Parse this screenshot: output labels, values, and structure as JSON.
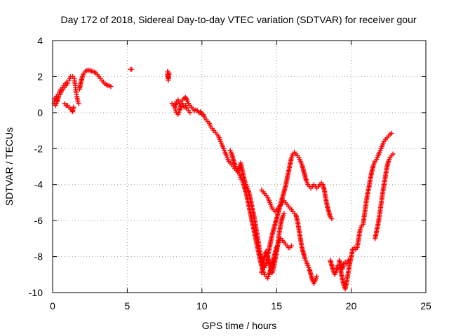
{
  "chart_data": {
    "type": "scatter",
    "title": "Day 172 of 2018, Sidereal Day-to-day VTEC variation (SDTVAR) for receiver gour",
    "xlabel": "GPS time / hours",
    "ylabel": "SDTVAR / TECUs",
    "xlim": [
      0,
      25
    ],
    "ylim": [
      -10,
      4
    ],
    "xticks": [
      0,
      5,
      10,
      15,
      20,
      25
    ],
    "yticks": [
      -10,
      -8,
      -6,
      -4,
      -2,
      0,
      2,
      4
    ],
    "grid": true,
    "marker": "+",
    "color": "#ff0000",
    "segments": [
      [
        [
          0.1,
          0.5
        ],
        [
          0.15,
          0.8
        ],
        [
          0.25,
          0.9
        ],
        [
          0.35,
          1.0
        ],
        [
          0.45,
          1.1
        ],
        [
          0.55,
          1.3
        ],
        [
          0.65,
          1.4
        ],
        [
          0.75,
          1.5
        ],
        [
          0.85,
          1.6
        ],
        [
          0.95,
          1.7
        ],
        [
          1.0,
          1.6
        ]
      ],
      [
        [
          0.2,
          0.4
        ],
        [
          0.3,
          0.6
        ],
        [
          0.4,
          0.9
        ],
        [
          0.5,
          1.0
        ],
        [
          0.6,
          1.2
        ],
        [
          0.7,
          1.3
        ],
        [
          0.8,
          1.4
        ],
        [
          0.9,
          1.5
        ]
      ],
      [
        [
          0.8,
          0.5
        ],
        [
          0.9,
          0.4
        ],
        [
          1.0,
          0.4
        ],
        [
          1.1,
          0.3
        ],
        [
          1.2,
          0.2
        ],
        [
          1.3,
          0.1
        ],
        [
          1.35,
          0.05
        ],
        [
          1.4,
          0.3
        ]
      ],
      [
        [
          1.1,
          1.8
        ],
        [
          1.2,
          2.0
        ],
        [
          1.35,
          2.0
        ],
        [
          1.45,
          1.9
        ],
        [
          1.5,
          1.6
        ],
        [
          1.55,
          1.3
        ],
        [
          1.6,
          1.0
        ],
        [
          1.65,
          0.8
        ],
        [
          1.7,
          0.6
        ],
        [
          1.75,
          0.5
        ]
      ],
      [
        [
          1.8,
          1.3
        ],
        [
          1.9,
          1.7
        ],
        [
          2.0,
          2.0
        ],
        [
          2.1,
          2.2
        ],
        [
          2.2,
          2.3
        ],
        [
          2.3,
          2.35
        ],
        [
          2.4,
          2.35
        ],
        [
          2.5,
          2.35
        ],
        [
          2.6,
          2.3
        ],
        [
          2.7,
          2.3
        ],
        [
          2.8,
          2.25
        ],
        [
          2.9,
          2.2
        ],
        [
          3.0,
          2.1
        ],
        [
          3.1,
          2.0
        ],
        [
          3.2,
          1.9
        ],
        [
          3.3,
          1.8
        ],
        [
          3.4,
          1.7
        ],
        [
          3.5,
          1.6
        ],
        [
          3.6,
          1.55
        ],
        [
          3.7,
          1.5
        ],
        [
          3.8,
          1.5
        ],
        [
          3.9,
          1.45
        ]
      ],
      [
        [
          5.2,
          2.4
        ],
        [
          5.3,
          2.4
        ]
      ],
      [
        [
          7.7,
          2.3
        ],
        [
          7.7,
          2.0
        ],
        [
          7.75,
          1.8
        ],
        [
          7.8,
          2.2
        ]
      ],
      [
        [
          8.0,
          0.5
        ],
        [
          8.1,
          0.4
        ],
        [
          8.2,
          0.3
        ],
        [
          8.3,
          0.6
        ],
        [
          8.4,
          0.7
        ],
        [
          8.5,
          0.5
        ],
        [
          8.6,
          0.6
        ],
        [
          8.7,
          0.7
        ],
        [
          8.8,
          0.8
        ],
        [
          8.9,
          0.85
        ],
        [
          9.0,
          0.7
        ],
        [
          9.1,
          0.5
        ],
        [
          9.2,
          0.4
        ],
        [
          9.3,
          0.3
        ],
        [
          9.4,
          0.2
        ],
        [
          9.5,
          0.1
        ],
        [
          9.6,
          0.15
        ],
        [
          9.7,
          0.1
        ],
        [
          9.8,
          0.0
        ],
        [
          9.9,
          0.05
        ],
        [
          10.0,
          -0.1
        ],
        [
          10.1,
          -0.1
        ],
        [
          10.2,
          -0.3
        ],
        [
          10.3,
          -0.4
        ],
        [
          10.4,
          -0.5
        ],
        [
          10.5,
          -0.6
        ],
        [
          10.6,
          -0.8
        ],
        [
          10.7,
          -0.9
        ],
        [
          10.8,
          -1.0
        ],
        [
          10.9,
          -1.1
        ],
        [
          11.0,
          -1.2
        ],
        [
          11.1,
          -1.3
        ],
        [
          11.2,
          -1.5
        ],
        [
          11.3,
          -1.7
        ],
        [
          11.4,
          -1.9
        ],
        [
          11.5,
          -2.1
        ],
        [
          11.6,
          -2.3
        ],
        [
          11.7,
          -2.5
        ],
        [
          11.8,
          -2.7
        ],
        [
          11.9,
          -2.8
        ],
        [
          12.0,
          -2.9
        ],
        [
          12.1,
          -3.0
        ],
        [
          12.2,
          -3.1
        ],
        [
          12.3,
          -3.2
        ],
        [
          12.4,
          -3.3
        ],
        [
          12.5,
          -3.4
        ],
        [
          12.6,
          -3.6
        ],
        [
          12.7,
          -3.8
        ],
        [
          12.8,
          -4.0
        ],
        [
          12.9,
          -4.3
        ],
        [
          13.0,
          -4.6
        ],
        [
          13.1,
          -5.0
        ],
        [
          13.2,
          -5.4
        ],
        [
          13.3,
          -5.8
        ],
        [
          13.4,
          -6.2
        ],
        [
          13.5,
          -6.6
        ],
        [
          13.6,
          -7.0
        ],
        [
          13.7,
          -7.4
        ],
        [
          13.8,
          -7.8
        ],
        [
          13.9,
          -8.2
        ],
        [
          14.0,
          -8.5
        ],
        [
          14.1,
          -8.8
        ],
        [
          14.2,
          -9.0
        ],
        [
          14.3,
          -9.1
        ],
        [
          14.4,
          -9.2
        ],
        [
          14.5,
          -9.0
        ],
        [
          14.6,
          -8.7
        ],
        [
          14.7,
          -8.4
        ],
        [
          14.8,
          -8.1
        ],
        [
          14.9,
          -7.8
        ],
        [
          15.0,
          -7.5
        ],
        [
          15.1,
          -7.3
        ],
        [
          15.2,
          -7.1
        ],
        [
          15.3,
          -7.0
        ],
        [
          15.4,
          -7.1
        ],
        [
          15.5,
          -7.2
        ],
        [
          15.6,
          -7.3
        ],
        [
          15.7,
          -7.4
        ],
        [
          15.8,
          -7.5
        ],
        [
          15.9,
          -7.5
        ],
        [
          16.0,
          -7.4
        ]
      ],
      [
        [
          8.2,
          0.2
        ],
        [
          8.3,
          0.0
        ],
        [
          8.4,
          -0.1
        ],
        [
          8.5,
          0.1
        ],
        [
          8.6,
          0.4
        ],
        [
          8.7,
          0.5
        ],
        [
          8.8,
          0.3
        ],
        [
          8.9,
          0.4
        ],
        [
          9.0,
          0.2
        ],
        [
          9.1,
          0.1
        ],
        [
          9.2,
          0.0
        ]
      ],
      [
        [
          11.9,
          -2.1
        ],
        [
          12.0,
          -2.3
        ],
        [
          12.1,
          -2.6
        ],
        [
          12.2,
          -2.9
        ],
        [
          12.3,
          -3.1
        ],
        [
          12.4,
          -3.3
        ],
        [
          12.5,
          -3.0
        ],
        [
          12.6,
          -2.8
        ],
        [
          12.7,
          -3.2
        ],
        [
          12.8,
          -3.6
        ],
        [
          12.9,
          -3.9
        ],
        [
          13.0,
          -4.1
        ],
        [
          13.1,
          -4.3
        ],
        [
          13.2,
          -4.6
        ],
        [
          13.3,
          -5.0
        ],
        [
          13.4,
          -5.4
        ],
        [
          13.5,
          -5.8
        ],
        [
          13.6,
          -6.3
        ],
        [
          13.7,
          -6.8
        ],
        [
          13.8,
          -7.3
        ],
        [
          13.9,
          -7.8
        ],
        [
          14.0,
          -8.2
        ],
        [
          14.1,
          -8.5
        ],
        [
          14.2,
          -8.6
        ],
        [
          14.3,
          -8.4
        ],
        [
          14.4,
          -8.0
        ],
        [
          14.5,
          -7.6
        ],
        [
          14.6,
          -7.2
        ],
        [
          14.7,
          -6.8
        ],
        [
          14.8,
          -6.5
        ],
        [
          14.9,
          -6.2
        ],
        [
          15.0,
          -5.9
        ],
        [
          15.1,
          -5.6
        ],
        [
          15.2,
          -5.3
        ],
        [
          15.3,
          -5.0
        ],
        [
          15.4,
          -4.7
        ],
        [
          15.5,
          -4.4
        ],
        [
          15.6,
          -4.1
        ],
        [
          15.7,
          -3.7
        ],
        [
          15.8,
          -3.3
        ],
        [
          15.9,
          -2.9
        ],
        [
          16.0,
          -2.5
        ],
        [
          16.1,
          -2.3
        ],
        [
          16.2,
          -2.2
        ],
        [
          16.3,
          -2.3
        ],
        [
          16.4,
          -2.4
        ],
        [
          16.5,
          -2.5
        ],
        [
          16.6,
          -2.7
        ],
        [
          16.7,
          -2.9
        ],
        [
          16.8,
          -3.2
        ],
        [
          16.9,
          -3.5
        ],
        [
          17.0,
          -3.8
        ],
        [
          17.1,
          -4.0
        ],
        [
          17.2,
          -4.1
        ],
        [
          17.3,
          -4.2
        ],
        [
          17.4,
          -4.1
        ],
        [
          17.5,
          -4.0
        ],
        [
          17.6,
          -4.1
        ],
        [
          17.7,
          -4.2
        ],
        [
          17.8,
          -4.1
        ],
        [
          17.9,
          -4.0
        ],
        [
          18.0,
          -3.9
        ],
        [
          18.1,
          -4.0
        ],
        [
          18.2,
          -4.3
        ],
        [
          18.3,
          -4.8
        ],
        [
          18.4,
          -5.2
        ],
        [
          18.5,
          -5.5
        ],
        [
          18.6,
          -5.8
        ],
        [
          18.7,
          -5.9
        ]
      ],
      [
        [
          14.0,
          -4.3
        ],
        [
          14.1,
          -4.4
        ],
        [
          14.2,
          -4.5
        ],
        [
          14.3,
          -4.6
        ],
        [
          14.4,
          -4.7
        ],
        [
          14.5,
          -4.9
        ],
        [
          14.6,
          -5.1
        ],
        [
          14.7,
          -5.3
        ],
        [
          14.8,
          -5.4
        ],
        [
          14.9,
          -5.5
        ],
        [
          15.0,
          -5.4
        ],
        [
          15.1,
          -5.3
        ],
        [
          15.2,
          -5.2
        ],
        [
          15.3,
          -5.1
        ],
        [
          15.4,
          -5.0
        ],
        [
          15.5,
          -4.9
        ],
        [
          15.6,
          -5.0
        ],
        [
          15.7,
          -5.1
        ],
        [
          15.8,
          -5.2
        ],
        [
          15.9,
          -5.3
        ],
        [
          16.0,
          -5.4
        ],
        [
          16.1,
          -5.5
        ],
        [
          16.2,
          -5.6
        ],
        [
          16.3,
          -5.7
        ],
        [
          16.4,
          -6.0
        ],
        [
          16.5,
          -6.5
        ],
        [
          16.6,
          -7.0
        ],
        [
          16.7,
          -7.5
        ],
        [
          16.8,
          -7.8
        ],
        [
          16.9,
          -8.1
        ],
        [
          17.0,
          -8.3
        ],
        [
          17.1,
          -8.5
        ],
        [
          17.2,
          -8.7
        ],
        [
          17.3,
          -9.0
        ],
        [
          17.4,
          -9.3
        ],
        [
          17.5,
          -9.5
        ],
        [
          17.6,
          -9.3
        ],
        [
          17.7,
          -9.1
        ]
      ],
      [
        [
          14.0,
          -8.9
        ],
        [
          14.1,
          -8.4
        ],
        [
          14.2,
          -8.0
        ],
        [
          14.3,
          -7.7
        ],
        [
          14.4,
          -8.0
        ],
        [
          14.5,
          -8.3
        ],
        [
          14.6,
          -8.6
        ],
        [
          14.7,
          -8.9
        ],
        [
          14.8,
          -8.6
        ],
        [
          14.9,
          -8.2
        ],
        [
          15.0,
          -7.8
        ],
        [
          15.1,
          -7.2
        ],
        [
          15.2,
          -6.6
        ],
        [
          15.3,
          -6.1
        ],
        [
          15.4,
          -5.8
        ],
        [
          15.5,
          -5.6
        ]
      ],
      [
        [
          18.6,
          -8.2
        ],
        [
          18.7,
          -8.5
        ],
        [
          18.8,
          -8.8
        ],
        [
          18.9,
          -9.0
        ],
        [
          19.0,
          -8.8
        ],
        [
          19.1,
          -8.5
        ],
        [
          19.2,
          -8.6
        ],
        [
          19.3,
          -8.8
        ],
        [
          19.4,
          -9.2
        ],
        [
          19.5,
          -9.6
        ],
        [
          19.6,
          -9.8
        ],
        [
          19.7,
          -9.4
        ],
        [
          19.8,
          -8.9
        ],
        [
          19.9,
          -8.4
        ],
        [
          20.0,
          -8.0
        ],
        [
          20.1,
          -7.6
        ],
        [
          20.2,
          -7.5
        ],
        [
          20.3,
          -7.6
        ],
        [
          20.4,
          -7.5
        ],
        [
          20.5,
          -7.0
        ],
        [
          20.6,
          -6.5
        ],
        [
          20.7,
          -6.3
        ],
        [
          20.8,
          -6.2
        ],
        [
          20.9,
          -5.6
        ],
        [
          21.0,
          -5.0
        ],
        [
          21.1,
          -4.5
        ],
        [
          21.2,
          -4.1
        ],
        [
          21.3,
          -3.6
        ],
        [
          21.4,
          -3.2
        ],
        [
          21.5,
          -2.9
        ],
        [
          21.6,
          -2.7
        ],
        [
          21.7,
          -2.6
        ],
        [
          21.8,
          -2.4
        ],
        [
          21.9,
          -2.2
        ],
        [
          22.0,
          -2.0
        ],
        [
          22.1,
          -1.8
        ],
        [
          22.2,
          -1.6
        ],
        [
          22.3,
          -1.5
        ],
        [
          22.4,
          -1.4
        ],
        [
          22.5,
          -1.3
        ],
        [
          22.6,
          -1.2
        ],
        [
          22.7,
          -1.15
        ]
      ],
      [
        [
          21.6,
          -7.0
        ],
        [
          21.7,
          -6.6
        ],
        [
          21.8,
          -6.2
        ],
        [
          21.9,
          -5.7
        ],
        [
          22.0,
          -5.1
        ],
        [
          22.1,
          -4.5
        ],
        [
          22.2,
          -4.0
        ],
        [
          22.3,
          -3.5
        ],
        [
          22.4,
          -3.0
        ],
        [
          22.5,
          -2.7
        ],
        [
          22.6,
          -2.5
        ],
        [
          22.7,
          -2.4
        ],
        [
          22.8,
          -2.3
        ]
      ],
      [
        [
          19.2,
          -8.2
        ],
        [
          19.3,
          -8.5
        ],
        [
          19.4,
          -8.7
        ],
        [
          19.5,
          -8.4
        ],
        [
          19.6,
          -8.3
        ],
        [
          19.7,
          -8.4
        ],
        [
          19.8,
          -8.2
        ]
      ]
    ]
  }
}
